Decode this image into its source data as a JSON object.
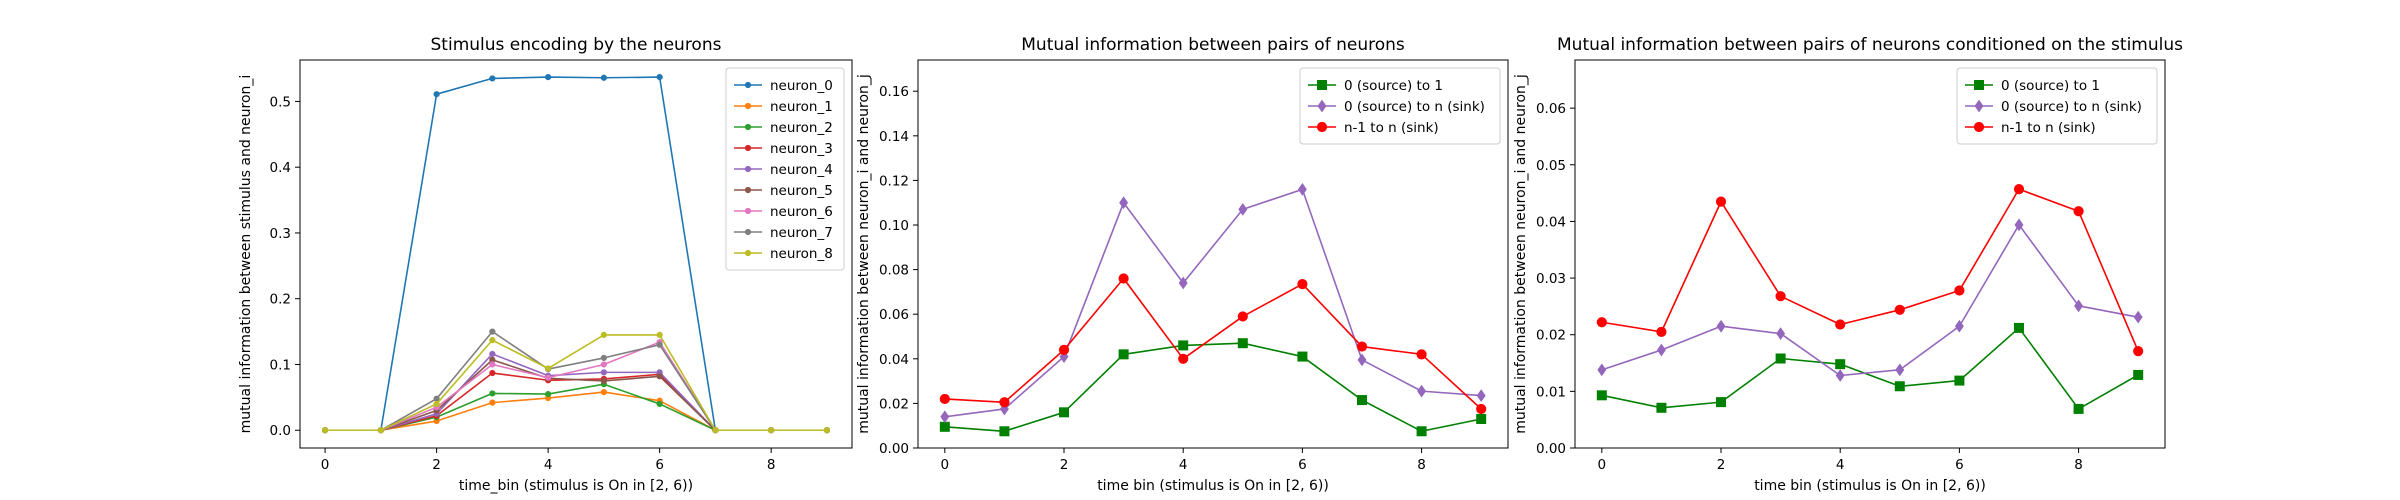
{
  "chart_data": [
    {
      "type": "line",
      "title": "Stimulus encoding by the neurons",
      "xlabel": "time_bin (stimulus is On in [2, 6))",
      "ylabel": "mutual information between stimulus and neuron_i",
      "xlim": [
        -0.45,
        9.45
      ],
      "ylim": [
        -0.027,
        0.563
      ],
      "xticks": [
        0,
        2,
        4,
        6,
        8
      ],
      "yticks": [
        0.0,
        0.1,
        0.2,
        0.3,
        0.4,
        0.5
      ],
      "ytick_decimals": 1,
      "legend_position": "upper right",
      "x": [
        0,
        1,
        2,
        3,
        4,
        5,
        6,
        7,
        8,
        9
      ],
      "series": [
        {
          "name": "neuron_0",
          "color": "#1f77b4",
          "marker": "dot",
          "values": [
            0,
            0,
            0.511,
            0.535,
            0.537,
            0.536,
            0.537,
            0,
            0,
            0
          ]
        },
        {
          "name": "neuron_1",
          "color": "#ff7f0e",
          "marker": "dot",
          "values": [
            0,
            0,
            0.014,
            0.042,
            0.049,
            0.058,
            0.045,
            0,
            0,
            0
          ]
        },
        {
          "name": "neuron_2",
          "color": "#2ca02c",
          "marker": "dot",
          "values": [
            0,
            0,
            0.02,
            0.056,
            0.055,
            0.07,
            0.04,
            0,
            0,
            0
          ]
        },
        {
          "name": "neuron_3",
          "color": "#d62728",
          "marker": "dot",
          "values": [
            0,
            0,
            0.022,
            0.087,
            0.076,
            0.078,
            0.085,
            0,
            0,
            0
          ]
        },
        {
          "name": "neuron_4",
          "color": "#9467bd",
          "marker": "dot",
          "values": [
            0,
            0,
            0.025,
            0.116,
            0.083,
            0.088,
            0.088,
            0,
            0,
            0
          ]
        },
        {
          "name": "neuron_5",
          "color": "#8c564b",
          "marker": "dot",
          "values": [
            0,
            0,
            0.03,
            0.107,
            0.079,
            0.075,
            0.082,
            0,
            0,
            0
          ]
        },
        {
          "name": "neuron_6",
          "color": "#e377c2",
          "marker": "dot",
          "values": [
            0,
            0,
            0.035,
            0.1,
            0.08,
            0.1,
            0.134,
            0,
            0,
            0
          ]
        },
        {
          "name": "neuron_7",
          "color": "#7f7f7f",
          "marker": "dot",
          "values": [
            0,
            0,
            0.048,
            0.15,
            0.093,
            0.11,
            0.13,
            0,
            0,
            0
          ]
        },
        {
          "name": "neuron_8",
          "color": "#bcbd22",
          "marker": "dot",
          "values": [
            0,
            0,
            0.04,
            0.137,
            0.094,
            0.145,
            0.145,
            0,
            0,
            0
          ]
        }
      ]
    },
    {
      "type": "line",
      "title": "Mutual information between pairs of neurons",
      "xlabel": "time bin (stimulus is On in [2, 6))",
      "ylabel": "mutual information between neuron_i and neuron_j",
      "xlim": [
        -0.45,
        9.45
      ],
      "ylim": [
        0,
        0.174
      ],
      "xticks": [
        0,
        2,
        4,
        6,
        8
      ],
      "yticks": [
        0.0,
        0.02,
        0.04,
        0.06,
        0.08,
        0.1,
        0.12,
        0.14,
        0.16
      ],
      "ytick_decimals": 2,
      "legend_position": "upper right",
      "x": [
        0,
        1,
        2,
        3,
        4,
        5,
        6,
        7,
        8,
        9
      ],
      "series": [
        {
          "name": "0 (source) to 1",
          "color": "#008000",
          "marker": "square",
          "values": [
            0.0095,
            0.0075,
            0.016,
            0.042,
            0.046,
            0.047,
            0.041,
            0.0215,
            0.0075,
            0.013
          ]
        },
        {
          "name": "0 (source) to n (sink)",
          "color": "#9467bd",
          "marker": "diamond",
          "values": [
            0.014,
            0.0175,
            0.041,
            0.11,
            0.074,
            0.107,
            0.116,
            0.0395,
            0.0255,
            0.0235
          ]
        },
        {
          "name": "n-1 to n (sink)",
          "color": "#ff0000",
          "marker": "circle",
          "values": [
            0.022,
            0.0205,
            0.044,
            0.076,
            0.04,
            0.059,
            0.0735,
            0.0455,
            0.042,
            0.0175
          ]
        }
      ]
    },
    {
      "type": "line",
      "title": "Mutual information between pairs of neurons conditioned on the stimulus",
      "xlabel": "time bin (stimulus is On in [2, 6))",
      "ylabel": "mutual information between neuron_i and neuron_j",
      "xlim": [
        -0.45,
        9.45
      ],
      "ylim": [
        0,
        0.0685
      ],
      "xticks": [
        0,
        2,
        4,
        6,
        8
      ],
      "yticks": [
        0.0,
        0.01,
        0.02,
        0.03,
        0.04,
        0.05,
        0.06
      ],
      "ytick_decimals": 2,
      "legend_position": "upper right",
      "x": [
        0,
        1,
        2,
        3,
        4,
        5,
        6,
        7,
        8,
        9
      ],
      "series": [
        {
          "name": "0 (source) to 1",
          "color": "#008000",
          "marker": "square",
          "values": [
            0.0093,
            0.0071,
            0.0081,
            0.0158,
            0.0148,
            0.0109,
            0.0119,
            0.0212,
            0.0069,
            0.0129
          ]
        },
        {
          "name": "0 (source) to n (sink)",
          "color": "#9467bd",
          "marker": "diamond",
          "values": [
            0.0138,
            0.0173,
            0.0215,
            0.0202,
            0.0128,
            0.0138,
            0.0215,
            0.0394,
            0.0251,
            0.0231
          ]
        },
        {
          "name": "n-1 to n (sink)",
          "color": "#ff0000",
          "marker": "circle",
          "values": [
            0.0222,
            0.0205,
            0.0435,
            0.0268,
            0.0218,
            0.0244,
            0.0278,
            0.0457,
            0.0418,
            0.0171
          ]
        }
      ]
    }
  ]
}
